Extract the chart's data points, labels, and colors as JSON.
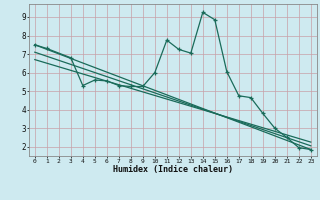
{
  "xlabel": "Humidex (Indice chaleur)",
  "bg_color": "#ceeaf0",
  "grid_color": "#aad4dc",
  "line_color": "#1a6b5a",
  "xlim": [
    -0.5,
    23.5
  ],
  "ylim": [
    1.5,
    9.7
  ],
  "xticks": [
    0,
    1,
    2,
    3,
    4,
    5,
    6,
    7,
    8,
    9,
    10,
    11,
    12,
    13,
    14,
    15,
    16,
    17,
    18,
    19,
    20,
    21,
    22,
    23
  ],
  "yticks": [
    2,
    3,
    4,
    5,
    6,
    7,
    8,
    9
  ],
  "series1_x": [
    0,
    1,
    3,
    4,
    5,
    6,
    7,
    8,
    9,
    10,
    11,
    12,
    13,
    14,
    15,
    16,
    17,
    18,
    19,
    20,
    21,
    22,
    23
  ],
  "series1_y": [
    7.5,
    7.3,
    6.8,
    5.3,
    5.6,
    5.55,
    5.3,
    5.25,
    5.25,
    6.0,
    7.75,
    7.25,
    7.05,
    9.25,
    8.85,
    6.05,
    4.75,
    4.65,
    3.8,
    3.0,
    2.5,
    1.95,
    1.85
  ],
  "line1_x": [
    0,
    23
  ],
  "line1_y": [
    7.5,
    1.85
  ],
  "line2_x": [
    0,
    23
  ],
  "line2_y": [
    7.1,
    2.05
  ],
  "line3_x": [
    0,
    23
  ],
  "line3_y": [
    6.7,
    2.25
  ]
}
